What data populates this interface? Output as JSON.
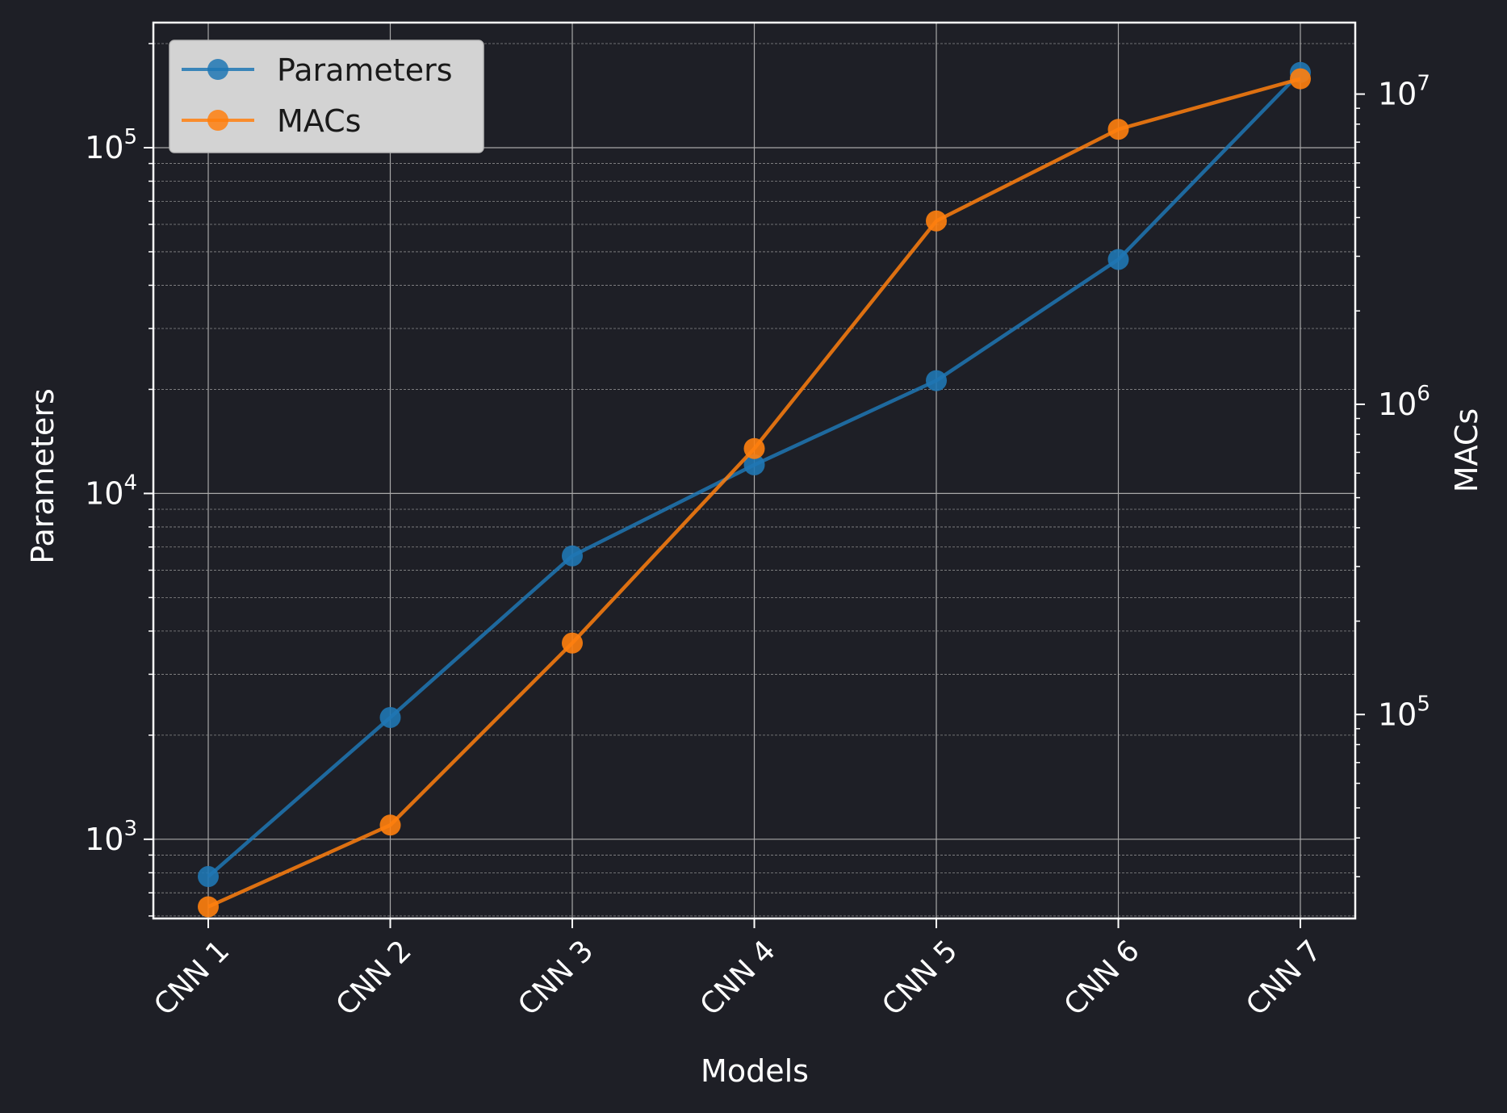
{
  "chart_data": {
    "type": "line",
    "xlabel": "Models",
    "ylabel_left": "Parameters",
    "ylabel_right": "MACs",
    "categories": [
      "CNN 1",
      "CNN 2",
      "CNN 3",
      "CNN 4",
      "CNN 5",
      "CNN 6",
      "CNN 7"
    ],
    "y_scale": "log",
    "ylim_left": [
      590,
      230000
    ],
    "ylim_right": [
      22000,
      17000000
    ],
    "left_ticks": [
      {
        "base": "10",
        "exp": "3",
        "value": 1000
      },
      {
        "base": "10",
        "exp": "4",
        "value": 10000
      },
      {
        "base": "10",
        "exp": "5",
        "value": 100000
      }
    ],
    "right_ticks": [
      {
        "base": "10",
        "exp": "5",
        "value": 100000
      },
      {
        "base": "10",
        "exp": "6",
        "value": 1000000
      },
      {
        "base": "10",
        "exp": "7",
        "value": 10000000
      }
    ],
    "grid": true,
    "legend_position": "top-left",
    "series": [
      {
        "name": "Parameters",
        "axis": "left",
        "color": "#1f77b4",
        "values": [
          780,
          2250,
          6600,
          12100,
          21200,
          47500,
          165000
        ]
      },
      {
        "name": "MACs",
        "axis": "right",
        "color": "#ff7f0e",
        "values": [
          24000,
          44000,
          170000,
          720000,
          3900000,
          7700000,
          11200000
        ]
      }
    ]
  }
}
